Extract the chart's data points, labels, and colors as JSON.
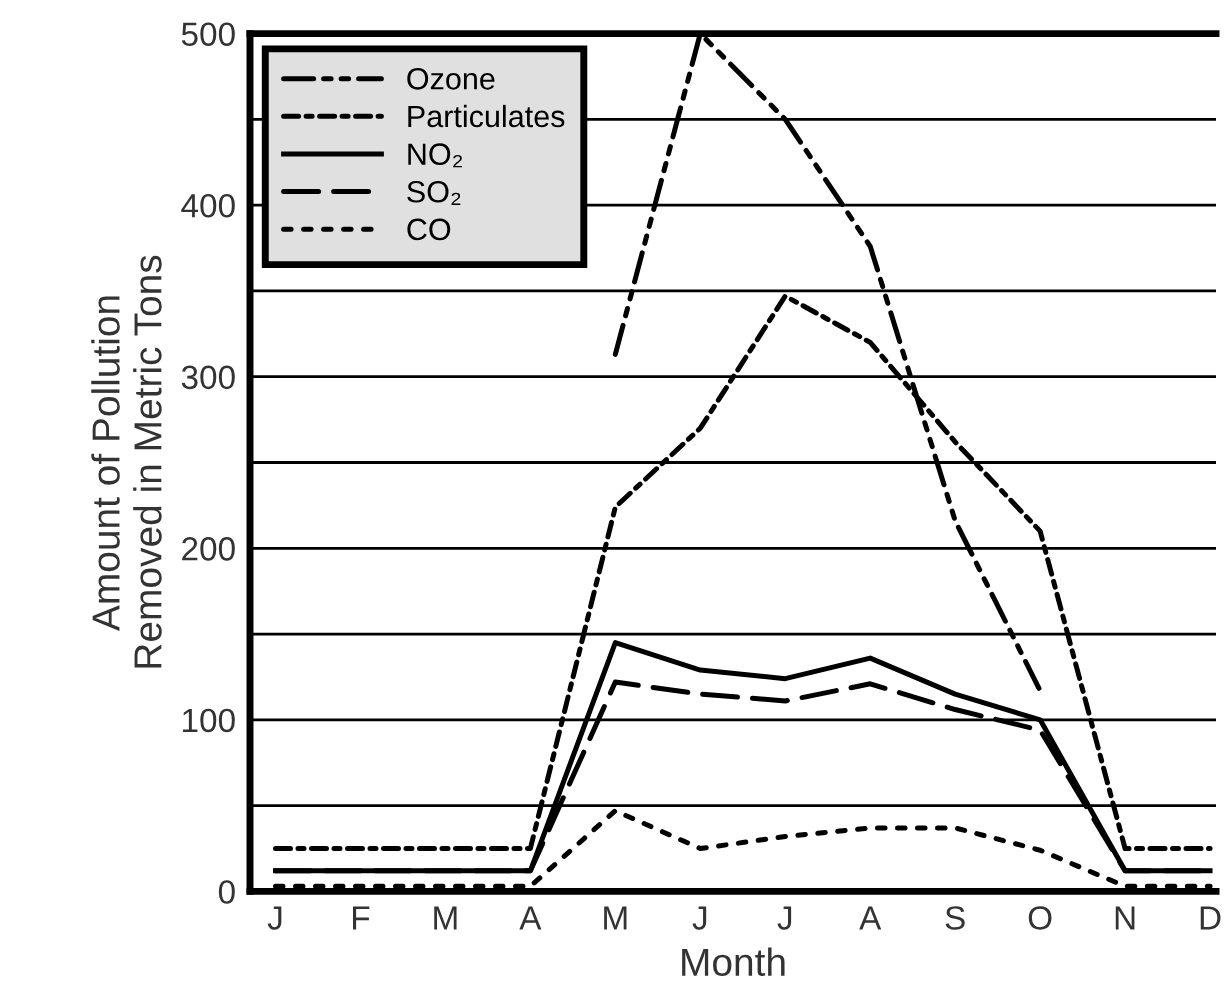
{
  "chart_data": {
    "type": "line",
    "xlabel": "Month",
    "ylabel": "Amount of Pollution\nRemoved in Metric Tons",
    "categories": [
      "J",
      "F",
      "M",
      "A",
      "M",
      "J",
      "J",
      "A",
      "S",
      "O",
      "N",
      "D"
    ],
    "series": [
      {
        "name": "Ozone",
        "color": "#000000",
        "line_style": "dashdotdot",
        "values": [
          null,
          null,
          null,
          null,
          313,
          500,
          450,
          376,
          216,
          117,
          null,
          null
        ]
      },
      {
        "name": "Particulates",
        "color": "#000000",
        "line_style": "dashdot",
        "values": [
          25,
          25,
          25,
          25,
          224,
          270,
          347,
          320,
          262,
          210,
          25,
          25
        ]
      },
      {
        "name": "NO₂",
        "color": "#000000",
        "line_style": "solid",
        "values": [
          12,
          12,
          12,
          12,
          145,
          129,
          124,
          136,
          115,
          100,
          12,
          12
        ]
      },
      {
        "name": "SO₂",
        "color": "#000000",
        "line_style": "dashed",
        "values": [
          12,
          12,
          12,
          12,
          122,
          115,
          111,
          121,
          106,
          94,
          12,
          12
        ]
      },
      {
        "name": "CO",
        "color": "#000000",
        "line_style": "dotted",
        "values": [
          3,
          3,
          3,
          3,
          47,
          25,
          32,
          37,
          37,
          24,
          3,
          3
        ]
      }
    ],
    "ylim": [
      0,
      500
    ],
    "yticks": [
      0,
      {
        "value": 50,
        "label": null
      },
      100,
      {
        "value": 150,
        "label": null
      },
      200,
      {
        "value": 250,
        "label": null
      },
      300,
      {
        "value": 350,
        "label": null
      },
      400,
      {
        "value": 450,
        "label": null
      },
      500
    ],
    "grid": "y",
    "legend": "top left",
    "marker": "none"
  }
}
